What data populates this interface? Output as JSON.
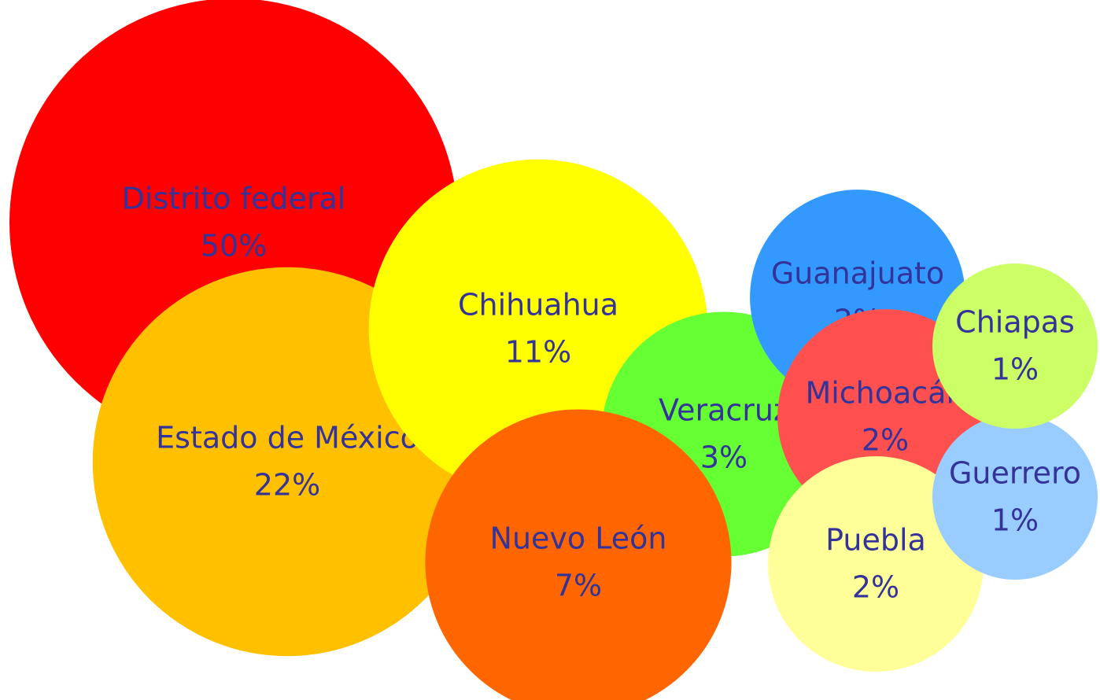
{
  "chart_data": {
    "type": "bubble",
    "categories": [
      "Distrito federal",
      "Estado de México",
      "Chihuahua",
      "Veracruz",
      "Nuevo León",
      "Guanajuato",
      "Michoacán",
      "Puebla",
      "Guerrero",
      "Chiapas"
    ],
    "values": [
      50,
      22,
      11,
      3,
      7,
      2,
      2,
      2,
      1,
      1
    ],
    "value_labels": [
      "50%",
      "22%",
      "11%",
      "3%",
      "7%",
      "2%",
      "2%",
      "2%",
      "1%",
      "1%"
    ],
    "colors": [
      "#ff0000",
      "#ffc000",
      "#ffff00",
      "#66ff33",
      "#ff6600",
      "#3399ff",
      "#ff5050",
      "#ffff99",
      "#99ccff",
      "#ccff66"
    ]
  }
}
